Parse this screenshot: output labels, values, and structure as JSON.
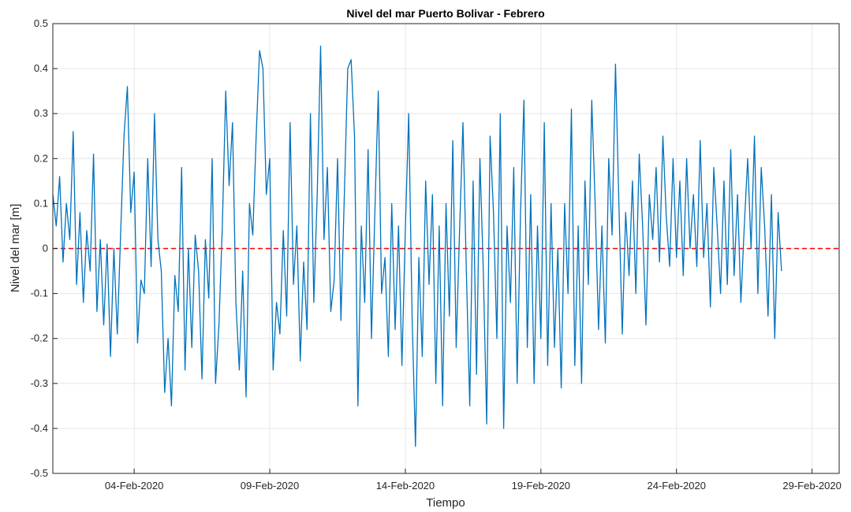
{
  "chart_data": {
    "type": "line",
    "title": "Nivel del mar Puerto Bolivar - Febrero",
    "xlabel": "Tiempo",
    "ylabel": "Nivel del mar [m]",
    "xlim": [
      "2020-02-01",
      "2020-03-01"
    ],
    "ylim": [
      -0.5,
      0.5
    ],
    "yticks": [
      -0.5,
      -0.4,
      -0.3,
      -0.2,
      -0.1,
      0,
      0.1,
      0.2,
      0.3,
      0.4,
      0.5
    ],
    "ytick_labels": [
      "-0.5",
      "-0.4",
      "-0.3",
      "-0.2",
      "-0.1",
      "0",
      "0.1",
      "0.2",
      "0.3",
      "0.4",
      "0.5"
    ],
    "xticks": [
      "2020-02-04",
      "2020-02-09",
      "2020-02-14",
      "2020-02-19",
      "2020-02-24",
      "2020-02-29"
    ],
    "xtick_labels": [
      "04-Feb-2020",
      "09-Feb-2020",
      "14-Feb-2020",
      "19-Feb-2020",
      "24-Feb-2020",
      "29-Feb-2020"
    ],
    "grid": true,
    "series": [
      {
        "color": "#0072BD",
        "style": "solid",
        "x_start": "2020-02-01",
        "x_step_days": 0.125,
        "values": [
          0.12,
          0.05,
          0.16,
          -0.03,
          0.1,
          0.02,
          0.26,
          -0.08,
          0.08,
          -0.12,
          0.04,
          -0.05,
          0.21,
          -0.14,
          0.02,
          -0.17,
          0.01,
          -0.24,
          0.0,
          -0.19,
          0.03,
          0.25,
          0.36,
          0.08,
          0.17,
          -0.21,
          -0.07,
          -0.1,
          0.2,
          -0.04,
          0.3,
          0.02,
          -0.05,
          -0.32,
          -0.2,
          -0.35,
          -0.06,
          -0.14,
          0.18,
          -0.27,
          0.0,
          -0.22,
          0.03,
          -0.05,
          -0.29,
          0.02,
          -0.11,
          0.2,
          -0.3,
          -0.17,
          0.05,
          0.35,
          0.14,
          0.28,
          -0.12,
          -0.27,
          -0.05,
          -0.33,
          0.1,
          0.03,
          0.25,
          0.44,
          0.4,
          0.12,
          0.2,
          -0.27,
          -0.12,
          -0.19,
          0.04,
          -0.15,
          0.28,
          -0.08,
          0.05,
          -0.25,
          -0.03,
          -0.18,
          0.3,
          -0.12,
          0.12,
          0.45,
          0.02,
          0.18,
          -0.14,
          -0.07,
          0.2,
          -0.16,
          0.12,
          0.4,
          0.42,
          0.25,
          -0.35,
          0.05,
          -0.12,
          0.22,
          -0.2,
          0.08,
          0.35,
          -0.1,
          -0.02,
          -0.24,
          0.1,
          -0.18,
          0.05,
          -0.26,
          0.04,
          0.3,
          -0.15,
          -0.44,
          -0.02,
          -0.24,
          0.15,
          -0.08,
          0.12,
          -0.3,
          0.05,
          -0.35,
          0.1,
          -0.15,
          0.24,
          -0.22,
          0.04,
          0.28,
          -0.05,
          -0.35,
          0.15,
          -0.28,
          0.2,
          -0.05,
          -0.39,
          0.25,
          0.08,
          -0.2,
          0.3,
          -0.4,
          0.05,
          -0.12,
          0.18,
          -0.3,
          0.08,
          0.33,
          -0.22,
          0.12,
          -0.3,
          0.05,
          -0.2,
          0.28,
          -0.26,
          0.1,
          -0.22,
          0.0,
          -0.31,
          0.1,
          -0.1,
          0.31,
          -0.26,
          0.05,
          -0.3,
          0.15,
          -0.08,
          0.33,
          0.1,
          -0.18,
          0.05,
          -0.21,
          0.2,
          0.03,
          0.41,
          0.1,
          -0.19,
          0.08,
          -0.06,
          0.15,
          -0.1,
          0.21,
          0.05,
          -0.17,
          0.12,
          0.02,
          0.18,
          -0.03,
          0.25,
          0.07,
          -0.04,
          0.2,
          -0.02,
          0.15,
          -0.06,
          0.2,
          0.0,
          0.12,
          -0.04,
          0.24,
          -0.02,
          0.1,
          -0.13,
          0.18,
          0.05,
          -0.1,
          0.15,
          -0.08,
          0.22,
          -0.06,
          0.12,
          -0.12,
          0.05,
          0.2,
          0.0,
          0.25,
          -0.1,
          0.18,
          0.05,
          -0.15,
          0.12,
          -0.2,
          0.08,
          -0.05
        ]
      },
      {
        "color": "#FF0000",
        "style": "dashed",
        "values": [
          0,
          0
        ]
      }
    ]
  }
}
